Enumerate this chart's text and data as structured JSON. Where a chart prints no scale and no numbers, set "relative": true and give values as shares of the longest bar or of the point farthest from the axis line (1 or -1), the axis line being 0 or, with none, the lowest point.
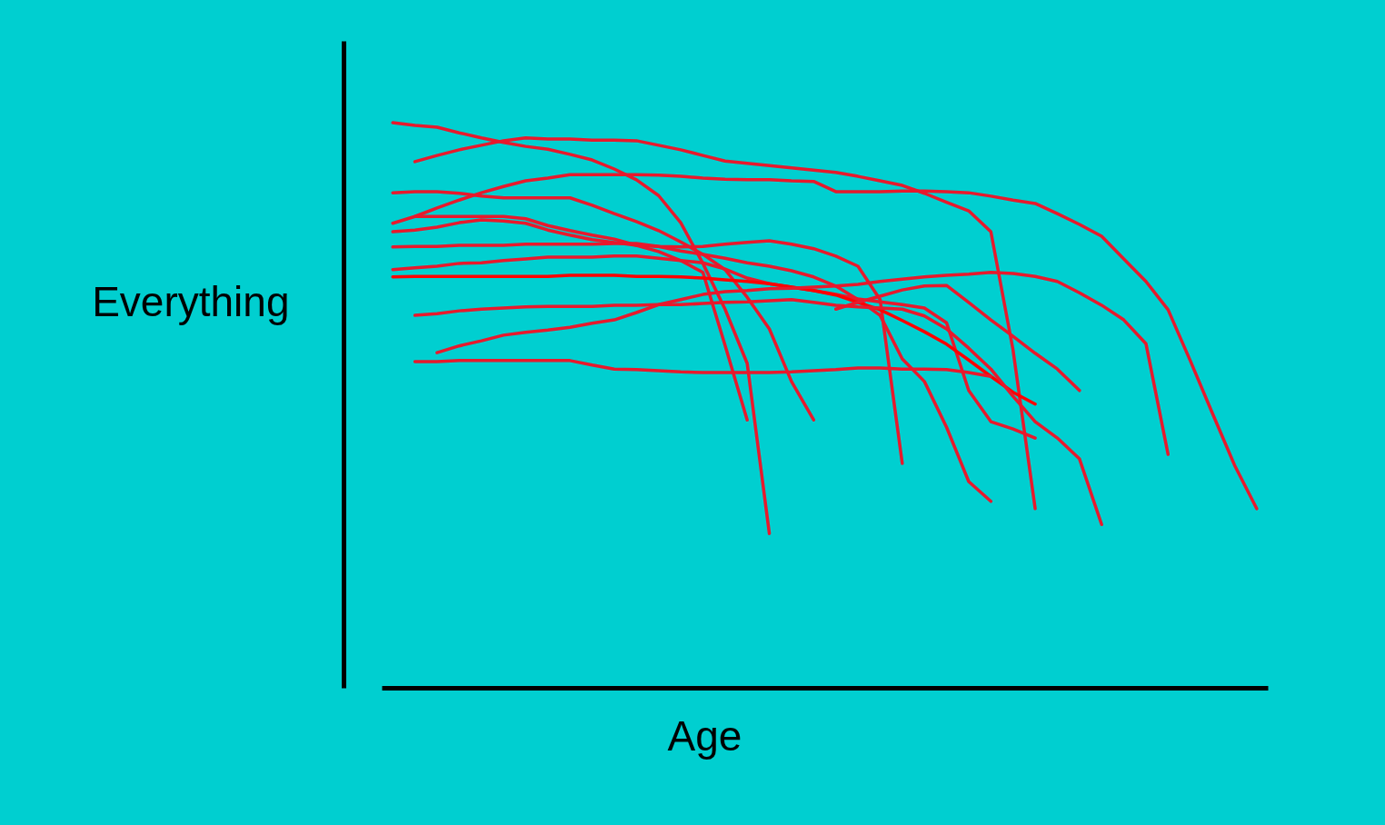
{
  "chart_data": {
    "type": "line",
    "relative": true,
    "xlabel": "Age",
    "ylabel": "Everything",
    "categories": [
      null,
      null,
      null,
      null,
      null,
      null,
      null,
      null,
      null,
      null,
      null,
      null,
      null,
      null,
      null,
      null,
      null,
      null,
      null,
      null,
      null,
      null,
      null,
      null,
      null,
      null,
      null,
      null,
      null,
      null,
      null,
      null,
      null,
      null,
      null,
      null,
      null,
      null,
      null,
      null
    ],
    "series": [
      {
        "color": "#e8192c",
        "values": [
          1.0,
          0.995,
          0.992,
          0.982,
          0.973,
          0.965,
          0.958,
          0.953,
          0.944,
          0.934,
          0.918,
          0.899,
          0.871,
          0.823,
          0.751,
          0.67,
          0.574,
          0.273,
          null,
          null,
          null,
          null,
          null,
          null,
          null,
          null,
          null,
          null,
          null,
          null,
          null,
          null,
          null,
          null,
          null,
          null,
          null,
          null,
          null,
          null
        ]
      },
      {
        "color": "#e8192c",
        "values": [
          null,
          0.931,
          0.942,
          0.952,
          0.96,
          0.968,
          0.973,
          0.971,
          0.971,
          0.969,
          0.969,
          0.968,
          0.96,
          0.952,
          0.942,
          0.932,
          0.928,
          0.924,
          0.92,
          0.916,
          0.912,
          0.905,
          0.897,
          0.889,
          0.875,
          0.859,
          0.844,
          0.807,
          0.598,
          0.317,
          null,
          null,
          null,
          null,
          null,
          null,
          null,
          null,
          null,
          null
        ]
      },
      {
        "color": "#e8192c",
        "values": [
          0.876,
          0.878,
          0.878,
          0.875,
          0.87,
          0.867,
          0.867,
          0.867,
          0.867,
          0.854,
          0.839,
          0.825,
          0.809,
          0.789,
          0.767,
          0.74,
          0.691,
          0.635,
          0.542,
          0.474,
          null,
          null,
          null,
          null,
          null,
          null,
          null,
          null,
          null,
          null,
          null,
          null,
          null,
          null,
          null,
          null,
          null,
          null,
          null,
          null
        ]
      },
      {
        "color": "#e8192c",
        "values": [
          0.822,
          0.834,
          0.849,
          0.863,
          0.876,
          0.887,
          0.897,
          0.902,
          0.908,
          0.908,
          0.908,
          0.908,
          0.907,
          0.905,
          0.902,
          0.9,
          0.899,
          0.899,
          0.897,
          0.896,
          0.878,
          0.878,
          0.878,
          0.879,
          0.879,
          0.878,
          0.876,
          0.87,
          0.863,
          0.857,
          0.839,
          0.82,
          0.799,
          0.759,
          0.719,
          0.669,
          0.579,
          0.486,
          0.394,
          0.317
        ]
      },
      {
        "color": "#e8192c",
        "values": [
          0.807,
          0.81,
          0.815,
          0.823,
          0.828,
          0.826,
          0.822,
          0.81,
          0.801,
          0.793,
          0.788,
          0.783,
          0.781,
          0.78,
          0.781,
          0.785,
          0.788,
          0.791,
          0.785,
          0.777,
          0.764,
          0.746,
          0.687,
          0.397,
          null,
          null,
          null,
          null,
          null,
          null,
          null,
          null,
          null,
          null,
          null,
          null,
          null,
          null,
          null,
          null
        ]
      },
      {
        "color": "#e8192c",
        "values": [
          null,
          0.834,
          0.834,
          0.834,
          0.834,
          0.834,
          0.83,
          0.818,
          0.809,
          0.801,
          0.794,
          0.783,
          0.772,
          0.756,
          0.735,
          0.606,
          0.474,
          null,
          null,
          null,
          null,
          null,
          null,
          null,
          null,
          null,
          null,
          null,
          null,
          null,
          null,
          null,
          null,
          null,
          null,
          null,
          null,
          null,
          null,
          null
        ]
      },
      {
        "color": "#e8192c",
        "values": [
          0.78,
          0.781,
          0.781,
          0.783,
          0.783,
          0.783,
          0.785,
          0.785,
          0.785,
          0.785,
          0.786,
          0.786,
          0.781,
          0.773,
          0.767,
          0.76,
          0.752,
          0.746,
          0.738,
          0.727,
          0.711,
          0.687,
          0.659,
          0.582,
          0.542,
          0.461,
          0.365,
          0.33,
          null,
          null,
          null,
          null,
          null,
          null,
          null,
          null,
          null,
          null,
          null,
          null
        ]
      },
      {
        "color": "#e8192c",
        "values": [
          0.74,
          0.743,
          0.746,
          0.751,
          0.752,
          0.756,
          0.759,
          0.762,
          0.762,
          0.762,
          0.764,
          0.764,
          0.76,
          0.756,
          0.752,
          0.741,
          0.725,
          0.715,
          0.709,
          0.703,
          0.696,
          0.688,
          0.683,
          0.678,
          0.672,
          0.646,
          0.526,
          0.471,
          0.458,
          0.442,
          null,
          null,
          null,
          null,
          null,
          null,
          null,
          null,
          null,
          null
        ]
      },
      {
        "color": "#ff0000",
        "values": [
          0.727,
          0.728,
          0.728,
          0.728,
          0.728,
          0.728,
          0.728,
          0.728,
          0.73,
          0.73,
          0.73,
          0.728,
          0.728,
          0.727,
          0.725,
          0.722,
          0.719,
          0.715,
          0.709,
          0.703,
          0.695,
          0.682,
          0.669,
          0.65,
          0.63,
          0.608,
          0.58,
          0.551,
          0.523,
          0.502,
          null,
          null,
          null,
          null,
          null,
          null,
          null,
          null,
          null,
          null
        ]
      },
      {
        "color": "#e8192c",
        "values": [
          null,
          0.659,
          0.662,
          0.667,
          0.67,
          0.672,
          0.674,
          0.675,
          0.675,
          0.675,
          0.677,
          0.677,
          0.678,
          0.678,
          0.68,
          0.682,
          0.683,
          0.685,
          0.687,
          0.682,
          0.677,
          0.674,
          0.672,
          0.67,
          0.658,
          0.635,
          0.601,
          0.564,
          0.516,
          0.471,
          0.442,
          0.405,
          0.289,
          null,
          null,
          null,
          null,
          null,
          null,
          null
        ]
      },
      {
        "color": "#e8192c",
        "values": [
          null,
          null,
          0.593,
          0.605,
          0.614,
          0.624,
          0.629,
          0.633,
          0.638,
          0.645,
          0.651,
          0.664,
          0.678,
          0.687,
          0.696,
          0.701,
          0.703,
          0.706,
          0.707,
          0.709,
          0.711,
          0.714,
          0.719,
          0.723,
          0.727,
          0.73,
          0.732,
          0.735,
          0.733,
          0.728,
          0.719,
          0.699,
          0.677,
          0.651,
          0.609,
          0.413,
          null,
          null,
          null,
          null
        ]
      },
      {
        "color": "#e8192c",
        "values": [
          null,
          0.577,
          0.577,
          0.579,
          0.579,
          0.579,
          0.579,
          0.579,
          0.579,
          0.571,
          0.564,
          0.563,
          0.561,
          0.559,
          0.558,
          0.558,
          0.558,
          0.558,
          0.559,
          0.561,
          0.563,
          0.566,
          0.566,
          0.564,
          0.564,
          0.563,
          0.558,
          0.551,
          null,
          null,
          null,
          null,
          null,
          null,
          null,
          null,
          null,
          null,
          null,
          null
        ]
      },
      {
        "color": "#e8192c",
        "values": [
          null,
          null,
          null,
          null,
          null,
          null,
          null,
          null,
          null,
          null,
          null,
          null,
          null,
          null,
          null,
          null,
          null,
          null,
          null,
          null,
          0.67,
          0.682,
          0.693,
          0.704,
          0.711,
          0.712,
          0.682,
          0.651,
          0.622,
          0.592,
          0.564,
          0.526,
          null,
          null,
          null,
          null,
          null,
          null,
          null,
          null
        ]
      }
    ]
  }
}
